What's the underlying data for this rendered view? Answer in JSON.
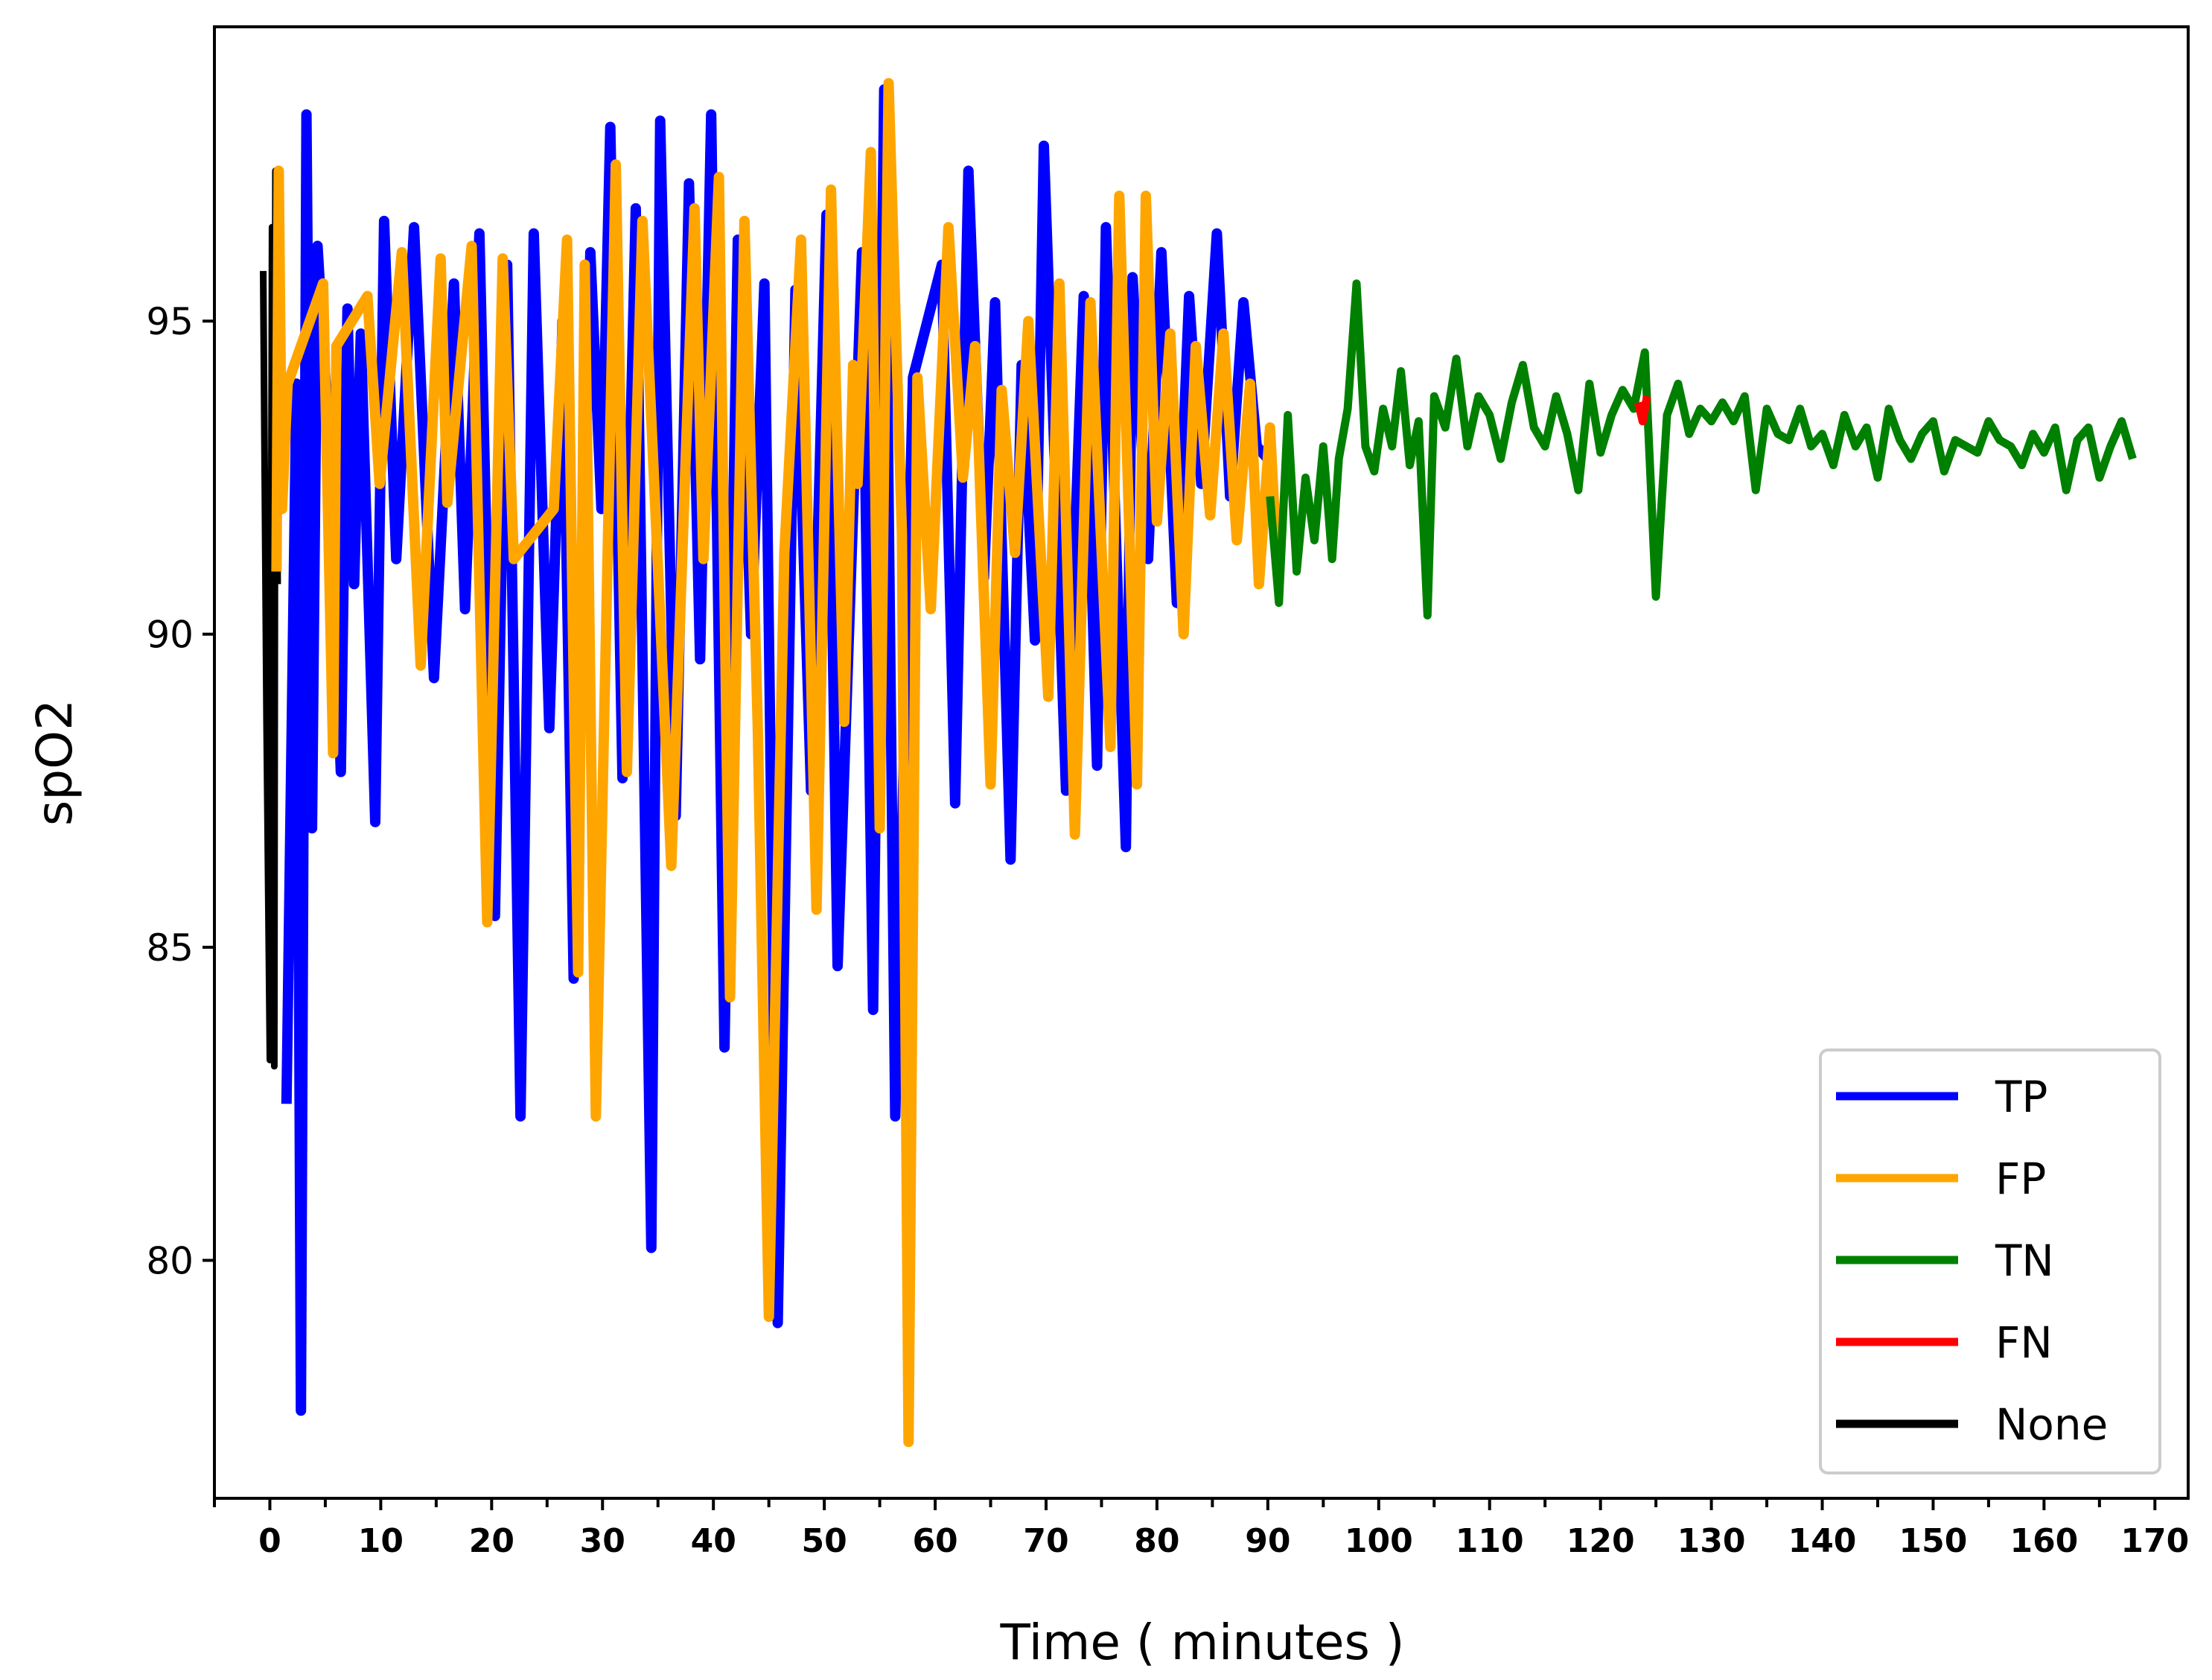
{
  "chart_data": {
    "type": "line",
    "title": "",
    "xlabel": "Time ( minutes )",
    "ylabel": "spO2",
    "xlim": [
      -5,
      173
    ],
    "ylim": [
      76.2,
      99.7
    ],
    "x_ticks": [
      0,
      10,
      20,
      30,
      40,
      50,
      60,
      70,
      80,
      90,
      100,
      110,
      120,
      130,
      140,
      150,
      160,
      170
    ],
    "x_minor_step": 5,
    "y_ticks": [
      80,
      85,
      90,
      95
    ],
    "grid": false,
    "legend_position": "bottom-right",
    "colors": {
      "TP": "#0000ff",
      "FP": "#ffa500",
      "TN": "#008000",
      "FN": "#ff0000",
      "None": "#000000"
    },
    "series": [
      {
        "name": "None",
        "x": [
          -0.6,
          -0.3,
          0,
          0.2,
          0.4,
          0.5,
          0.7
        ],
        "y": [
          95.8,
          88.6,
          83.2,
          96.5,
          83.1,
          97.4,
          90.8
        ]
      },
      {
        "name": "TP",
        "x": [
          1.5,
          2.4,
          2.8,
          3.3,
          3.8,
          4.3,
          5.2,
          6.4,
          7.0,
          7.6,
          8.2,
          9.5,
          10.3,
          11.4,
          13.0,
          14.8,
          16.6,
          17.6,
          18.9,
          20.3,
          21.4,
          22.6,
          23.8,
          25.2,
          26.4,
          27.4,
          28.9,
          29.9,
          30.7,
          31.8,
          33.0,
          34.4,
          35.2,
          36.6,
          37.8,
          38.8,
          39.8,
          41.0,
          42.2,
          43.4,
          44.6,
          45.8,
          47.4,
          48.8,
          50.2,
          51.2,
          53.4,
          54.4,
          55.4,
          56.4,
          58.0,
          60.6,
          61.8,
          63.0,
          64.4,
          65.4,
          66.8,
          67.8,
          69.0,
          69.8,
          71.8,
          73.4,
          74.6,
          75.4,
          77.2,
          77.8,
          79.2,
          80.4,
          81.8,
          82.9,
          84.0,
          85.4,
          86.6,
          87.8,
          89.0,
          90.0
        ],
        "y": [
          82.5,
          94.0,
          77.6,
          98.3,
          86.9,
          96.2,
          93.5,
          87.8,
          95.2,
          90.8,
          94.8,
          87.0,
          96.6,
          91.2,
          96.5,
          89.3,
          95.6,
          90.4,
          96.4,
          85.5,
          95.9,
          82.3,
          96.4,
          88.5,
          95.0,
          84.5,
          96.1,
          92.0,
          98.1,
          87.7,
          96.8,
          80.2,
          98.2,
          87.1,
          97.2,
          89.6,
          98.3,
          83.4,
          96.3,
          90.0,
          95.6,
          79.0,
          95.5,
          87.5,
          96.7,
          84.7,
          96.1,
          84.0,
          98.7,
          82.3,
          94.1,
          95.9,
          87.3,
          97.4,
          90.9,
          95.3,
          86.4,
          94.3,
          89.9,
          97.8,
          87.5,
          95.4,
          87.9,
          96.5,
          86.6,
          95.7,
          91.2,
          96.1,
          90.5,
          95.4,
          92.4,
          96.4,
          92.2,
          95.3,
          93.0,
          92.8
        ]
      },
      {
        "name": "FP",
        "x": [
          0.6,
          0.8,
          1.1,
          1.6,
          4.8,
          5.7,
          6.0,
          8.8,
          9.9,
          11.9,
          13.6,
          15.4,
          16.0,
          18.2,
          19.6,
          21.0,
          22.0,
          25.6,
          26.8,
          27.8,
          28.4,
          29.4,
          31.2,
          32.2,
          33.6,
          36.2,
          38.3,
          39.1,
          40.5,
          41.5,
          42.8,
          44.0,
          45.0,
          46.4,
          47.9,
          49.3,
          50.6,
          51.8,
          52.6,
          53.0,
          54.2,
          55.0,
          55.8,
          57.0,
          57.6,
          58.4,
          59.6,
          61.2,
          62.5,
          63.6,
          65.0,
          66.0,
          67.2,
          68.4,
          70.2,
          71.2,
          72.6,
          74.0,
          75.8,
          76.6,
          78.2,
          79.0,
          80.0,
          81.2,
          82.4,
          83.5,
          84.8,
          86.0,
          87.2,
          88.4,
          89.2,
          90.2,
          90.8
        ],
        "y": [
          91.0,
          97.4,
          92.0,
          94.0,
          95.6,
          88.1,
          94.6,
          95.4,
          92.4,
          96.1,
          89.5,
          96.0,
          92.1,
          96.2,
          85.4,
          96.0,
          91.2,
          92.0,
          96.3,
          84.6,
          95.9,
          82.3,
          97.5,
          87.8,
          96.6,
          86.3,
          96.8,
          91.2,
          97.3,
          84.2,
          96.6,
          88.5,
          79.1,
          91.3,
          96.3,
          85.6,
          97.1,
          88.6,
          94.3,
          92.4,
          97.7,
          86.9,
          98.8,
          91.6,
          77.1,
          94.1,
          90.4,
          96.5,
          92.5,
          94.6,
          87.6,
          93.9,
          91.3,
          95.0,
          89.0,
          95.6,
          86.8,
          95.3,
          88.2,
          97.0,
          87.6,
          97.0,
          91.8,
          94.8,
          90.0,
          94.6,
          91.9,
          94.8,
          91.5,
          94.0,
          90.8,
          93.3,
          91.2
        ]
      },
      {
        "name": "TN",
        "x": [
          90.2,
          91.0,
          91.8,
          92.6,
          93.4,
          94.2,
          95.0,
          95.8,
          96.4,
          97.2,
          98.0,
          98.8,
          99.6,
          100.4,
          101.2,
          102.0,
          102.8,
          103.6,
          104.4,
          105.0,
          106.0,
          107.0,
          108.0,
          109.0,
          110.0,
          111.0,
          112.0,
          113.0,
          114.0,
          115.0,
          116.0,
          117.0,
          118.0,
          119.0,
          120.0,
          121.0,
          122.0,
          123.0,
          124.0,
          125.0,
          126.0,
          127.0,
          128.0,
          129.0,
          130.0,
          131.0,
          132.0,
          133.0,
          134.0,
          135.0,
          136.0,
          137.0,
          138.0,
          139.0,
          140.0,
          141.0,
          142.0,
          143.0,
          144.0,
          145.0,
          146.0,
          147.0,
          148.0,
          149.0,
          150.0,
          151.0,
          152.0,
          153.0,
          154.0,
          155.0,
          156.0,
          157.0,
          158.0,
          159.0,
          160.0,
          161.0,
          162.0,
          163.0,
          164.0,
          165.0,
          166.0,
          167.0,
          168.0
        ],
        "y": [
          92.2,
          90.5,
          93.5,
          91.0,
          92.5,
          91.5,
          93.0,
          91.2,
          92.8,
          93.6,
          95.6,
          93.0,
          92.6,
          93.6,
          93.0,
          94.2,
          92.7,
          93.4,
          90.3,
          93.8,
          93.3,
          94.4,
          93.0,
          93.8,
          93.5,
          92.8,
          93.7,
          94.3,
          93.3,
          93.0,
          93.8,
          93.2,
          92.3,
          94.0,
          92.9,
          93.5,
          93.9,
          93.6,
          94.5,
          90.6,
          93.5,
          94.0,
          93.2,
          93.6,
          93.4,
          93.7,
          93.4,
          93.8,
          92.3,
          93.6,
          93.2,
          93.1,
          93.6,
          93.0,
          93.2,
          92.7,
          93.5,
          93.0,
          93.3,
          92.5,
          93.6,
          93.1,
          92.8,
          93.2,
          93.4,
          92.6,
          93.1,
          93.0,
          92.9,
          93.4,
          93.1,
          93.0,
          92.7,
          93.2,
          92.9,
          93.3,
          92.3,
          93.1,
          93.3,
          92.5,
          93.0,
          93.4,
          92.8
        ]
      },
      {
        "name": "FN",
        "x": [
          123.4,
          123.8,
          124.2
        ],
        "y": [
          93.7,
          93.4,
          93.8
        ]
      }
    ]
  }
}
